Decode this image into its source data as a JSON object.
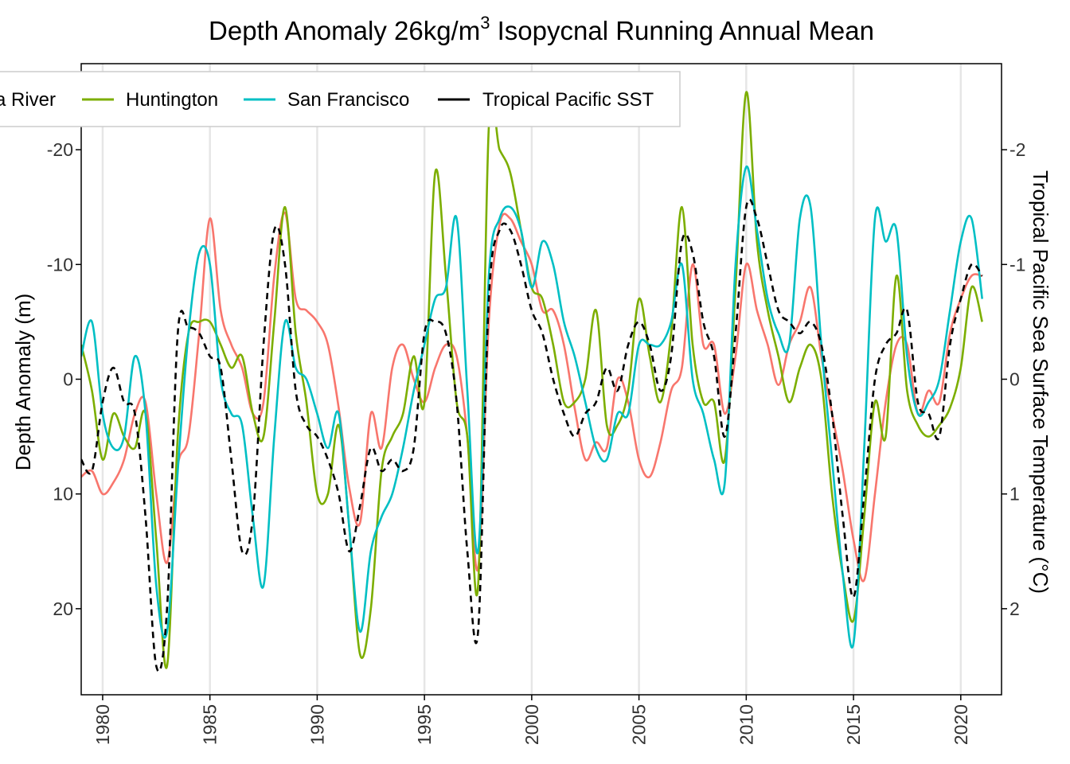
{
  "chart_data": {
    "type": "line",
    "title_main": "Depth Anomaly 26kg/m",
    "title_sup": "3",
    "title_rest": " Isopycnal Running Annual Mean",
    "ylabel_left": "Depth Anomaly (m)",
    "ylabel_right": "Tropical Pacific Sea Surface Temperature  (°C)",
    "xlim": [
      1979,
      2021.9
    ],
    "ylim_left": [
      27.5,
      -27.5
    ],
    "ylim_right": [
      2.75,
      -2.75
    ],
    "x_ticks": [
      1980,
      1985,
      1990,
      1995,
      2000,
      2005,
      2010,
      2015,
      2020
    ],
    "x_tick_labels": [
      "1980",
      "1985",
      "1990",
      "1995",
      "2000",
      "2005",
      "2010",
      "2015",
      "2020"
    ],
    "y_left_ticks": [
      -20,
      -10,
      0,
      10,
      20
    ],
    "y_left_tick_labels": [
      "-20",
      "-10",
      "0",
      "10",
      "20"
    ],
    "y_right_ticks": [
      -2,
      -1,
      0,
      1,
      2
    ],
    "y_right_tick_labels": [
      "-2",
      "-1",
      "0",
      "1",
      "2"
    ],
    "legend": {
      "placement": "top-left",
      "entries": [
        "Columbia River",
        "Huntington",
        "San Francisco",
        "Tropical Pacific SST"
      ],
      "visible_labels": [
        "a River",
        "Huntington",
        "San Francisco",
        "Tropical Pacific SST"
      ]
    },
    "series": [
      {
        "name": "Columbia River",
        "axis": "left",
        "color": "#F8766D",
        "dash": "solid",
        "x": [
          1979,
          1979.5,
          1980,
          1980.5,
          1981,
          1981.5,
          1982,
          1982.5,
          1983,
          1983.5,
          1984,
          1984.5,
          1985,
          1985.5,
          1986,
          1986.5,
          1987,
          1987.5,
          1988,
          1988.5,
          1989,
          1989.5,
          1990,
          1990.5,
          1991,
          1991.5,
          1992,
          1992.5,
          1993,
          1993.5,
          1994,
          1994.5,
          1995,
          1995.5,
          1996,
          1996.5,
          1997,
          1997.5,
          1998,
          1998.5,
          1999,
          1999.5,
          2000,
          2000.5,
          2001,
          2001.5,
          2002,
          2002.5,
          2003,
          2003.5,
          2004,
          2004.5,
          2005,
          2005.5,
          2006,
          2006.5,
          2007,
          2007.5,
          2008,
          2008.5,
          2009,
          2009.5,
          2010,
          2010.5,
          2011,
          2011.5,
          2012,
          2012.5,
          2013,
          2013.5,
          2014,
          2014.5,
          2015,
          2015.5,
          2016,
          2016.5,
          2017,
          2017.5,
          2018,
          2018.5,
          2019,
          2019.5,
          2020,
          2020.5,
          2021
        ],
        "values": [
          8.5,
          8.0,
          10.0,
          9.0,
          7.0,
          3.0,
          2.0,
          10.0,
          16.0,
          7.5,
          5.0,
          -4.0,
          -14.0,
          -6.0,
          -3.0,
          -1.0,
          3.0,
          2.0,
          -9.0,
          -14.5,
          -7.0,
          -6.0,
          -5.0,
          -3.0,
          2.5,
          9.5,
          12.5,
          3.0,
          6.0,
          -1.0,
          -3.0,
          0.0,
          2.0,
          -1.0,
          -3.0,
          -2.0,
          5.0,
          16.5,
          -5.0,
          -13.5,
          -14.0,
          -12.0,
          -10.0,
          -6.0,
          -6.0,
          -3.0,
          2.5,
          7.0,
          5.5,
          6.0,
          0.0,
          2.0,
          7.0,
          8.5,
          5.5,
          1.0,
          -1.0,
          -10.0,
          -3.0,
          -3.0,
          3.0,
          -2.0,
          -10.0,
          -6.0,
          -3.0,
          0.5,
          -3.0,
          -5.0,
          -8.0,
          -2.0,
          3.0,
          8.0,
          14.0,
          17.5,
          10.0,
          2.0,
          -3.0,
          -3.0,
          3.0,
          1.0,
          2.0,
          -4.0,
          -7.0,
          -9.0,
          -9.0
        ]
      },
      {
        "name": "Huntington",
        "axis": "left",
        "color": "#7CAE00",
        "dash": "solid",
        "x": [
          1979,
          1979.5,
          1980,
          1980.5,
          1981,
          1981.5,
          1982,
          1982.5,
          1983,
          1983.5,
          1984,
          1984.5,
          1985,
          1985.5,
          1986,
          1986.5,
          1987,
          1987.5,
          1988,
          1988.5,
          1989,
          1989.5,
          1990,
          1990.5,
          1991,
          1991.5,
          1992,
          1992.5,
          1993,
          1993.5,
          1994,
          1994.5,
          1995,
          1995.5,
          1996,
          1996.5,
          1997,
          1997.5,
          1998,
          1998.5,
          1999,
          1999.5,
          2000,
          2000.5,
          2001,
          2001.5,
          2002,
          2002.5,
          2003,
          2003.5,
          2004,
          2004.5,
          2005,
          2005.5,
          2006,
          2006.5,
          2007,
          2007.5,
          2008,
          2008.5,
          2009,
          2009.5,
          2010,
          2010.5,
          2011,
          2011.5,
          2012,
          2012.5,
          2013,
          2013.5,
          2014,
          2014.5,
          2015,
          2015.5,
          2016,
          2016.5,
          2017,
          2017.5,
          2018,
          2018.5,
          2019,
          2019.5,
          2020,
          2020.5,
          2021
        ],
        "values": [
          -3.0,
          1.0,
          7.0,
          3.0,
          5.0,
          6.0,
          3.0,
          14.0,
          25.0,
          5.0,
          -4.0,
          -5.0,
          -5.0,
          -3.0,
          -1.0,
          -2.0,
          3.0,
          5.0,
          -5.0,
          -15.0,
          -4.0,
          2.0,
          10.0,
          10.0,
          4.0,
          13.0,
          24.0,
          20.0,
          8.0,
          5.0,
          3.0,
          -2.0,
          2.0,
          -18.0,
          -9.0,
          2.0,
          5.0,
          18.0,
          -22.0,
          -20.0,
          -18.0,
          -13.0,
          -8.0,
          -7.0,
          -3.0,
          2.0,
          2.0,
          0.0,
          -6.0,
          4.0,
          4.0,
          1.0,
          -7.0,
          -2.0,
          2.0,
          -4.0,
          -15.0,
          -3.0,
          2.0,
          2.0,
          7.0,
          -8.0,
          -25.0,
          -12.0,
          -6.0,
          -2.0,
          2.0,
          -1.0,
          -3.0,
          0.0,
          10.0,
          17.0,
          21.0,
          12.0,
          2.0,
          5.0,
          -9.0,
          1.0,
          4.0,
          5.0,
          4.0,
          2.5,
          -1.0,
          -8.0,
          -5.0
        ]
      },
      {
        "name": "San Francisco",
        "axis": "left",
        "color": "#00BFC4",
        "dash": "solid",
        "x": [
          1979,
          1979.5,
          1980,
          1980.5,
          1981,
          1981.5,
          1982,
          1982.5,
          1983,
          1983.5,
          1984,
          1984.5,
          1985,
          1985.5,
          1986,
          1986.5,
          1987,
          1987.5,
          1988,
          1988.5,
          1989,
          1989.5,
          1990,
          1990.5,
          1991,
          1991.5,
          1992,
          1992.5,
          1993,
          1993.5,
          1994,
          1994.5,
          1995,
          1995.5,
          1996,
          1996.5,
          1997,
          1997.5,
          1998,
          1998.5,
          1999,
          1999.5,
          2000,
          2000.5,
          2001,
          2001.5,
          2002,
          2002.5,
          2003,
          2003.5,
          2004,
          2004.5,
          2005,
          2005.5,
          2006,
          2006.5,
          2007,
          2007.5,
          2008,
          2008.5,
          2009,
          2009.5,
          2010,
          2010.5,
          2011,
          2011.5,
          2012,
          2012.5,
          2013,
          2013.5,
          2014,
          2014.5,
          2015,
          2015.5,
          2016,
          2016.5,
          2017,
          2017.5,
          2018,
          2018.5,
          2019,
          2019.5,
          2020,
          2020.5,
          2021
        ],
        "values": [
          -2.0,
          -5.0,
          3.0,
          6.0,
          5.0,
          -2.0,
          3.0,
          18.0,
          22.0,
          8.0,
          -4.0,
          -11.0,
          -10.0,
          0.0,
          3.0,
          4.0,
          12.0,
          18.0,
          5.0,
          -5.0,
          -1.0,
          0.0,
          3.0,
          6.0,
          3.0,
          13.0,
          22.0,
          15.0,
          12.0,
          10.0,
          6.0,
          1.0,
          -3.0,
          -7.0,
          -8.0,
          -14.0,
          1.0,
          15.0,
          -9.0,
          -14.0,
          -15.0,
          -13.0,
          -8.0,
          -12.0,
          -10.0,
          -5.0,
          -2.0,
          2.0,
          6.0,
          7.0,
          3.0,
          3.0,
          -3.0,
          -3.0,
          -3.0,
          -5.0,
          -10.0,
          0.0,
          3.0,
          7.0,
          9.0,
          -10.0,
          -18.5,
          -13.0,
          -7.0,
          -4.0,
          -3.0,
          -14.0,
          -15.0,
          -3.0,
          7.0,
          17.0,
          23.0,
          6.0,
          -14.0,
          -12.0,
          -13.0,
          -2.0,
          3.0,
          2.0,
          0.0,
          -6.0,
          -12.0,
          -14.0,
          -7.0
        ]
      },
      {
        "name": "Tropical Pacific SST",
        "axis": "right",
        "color": "#000000",
        "dash": "8,6",
        "x": [
          1979,
          1979.5,
          1980,
          1980.5,
          1981,
          1981.5,
          1982,
          1982.5,
          1983,
          1983.5,
          1984,
          1984.5,
          1985,
          1985.5,
          1986,
          1986.5,
          1987,
          1987.5,
          1988,
          1988.5,
          1989,
          1989.5,
          1990,
          1990.5,
          1991,
          1991.5,
          1992,
          1992.5,
          1993,
          1993.5,
          1994,
          1994.5,
          1995,
          1995.5,
          1996,
          1996.5,
          1997,
          1997.5,
          1998,
          1998.5,
          1999,
          1999.5,
          2000,
          2000.5,
          2001,
          2001.5,
          2002,
          2002.5,
          2003,
          2003.5,
          2004,
          2004.5,
          2005,
          2005.5,
          2006,
          2006.5,
          2007,
          2007.5,
          2008,
          2008.5,
          2009,
          2009.5,
          2010,
          2010.5,
          2011,
          2011.5,
          2012,
          2012.5,
          2013,
          2013.5,
          2014,
          2014.5,
          2015,
          2015.5,
          2016,
          2016.5,
          2017,
          2017.5,
          2018,
          2018.5,
          2019,
          2019.5,
          2020,
          2020.5,
          2021
        ],
        "values": [
          0.7,
          0.8,
          0.2,
          -0.1,
          0.2,
          0.3,
          1.2,
          2.5,
          2.0,
          -0.4,
          -0.45,
          -0.4,
          -0.2,
          -0.1,
          0.7,
          1.5,
          1.2,
          -0.3,
          -1.3,
          -1.0,
          0.1,
          0.4,
          0.5,
          0.7,
          1.0,
          1.5,
          1.1,
          0.6,
          0.8,
          0.7,
          0.8,
          0.6,
          -0.4,
          -0.5,
          -0.4,
          0.2,
          1.5,
          2.2,
          -0.7,
          -1.3,
          -1.3,
          -1.0,
          -0.6,
          -0.4,
          0.0,
          0.3,
          0.5,
          0.3,
          0.2,
          -0.1,
          0.1,
          -0.3,
          -0.5,
          -0.3,
          0.1,
          -0.2,
          -1.2,
          -1.1,
          -0.5,
          -0.2,
          0.5,
          -0.4,
          -1.5,
          -1.4,
          -1.0,
          -0.6,
          -0.5,
          -0.4,
          -0.5,
          -0.3,
          0.3,
          1.2,
          1.9,
          1.0,
          0.0,
          -0.3,
          -0.4,
          -0.6,
          0.2,
          0.3,
          0.5,
          -0.3,
          -0.7,
          -1.0,
          -0.9
        ]
      }
    ]
  }
}
